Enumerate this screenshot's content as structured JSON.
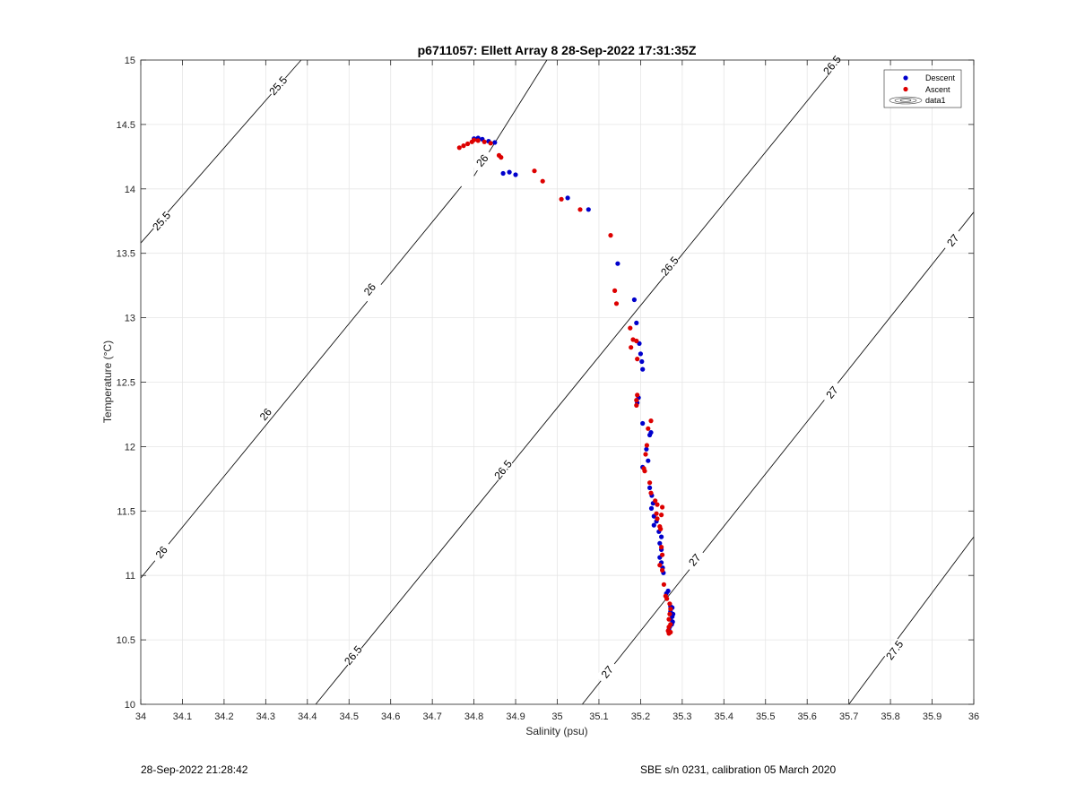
{
  "chart_data": {
    "type": "scatter",
    "title": "p6711057: Ellett Array 8 28-Sep-2022 17:31:35Z",
    "xlabel": "Salinity (psu)",
    "ylabel": "Temperature (°C)",
    "xlim": [
      34,
      36
    ],
    "ylim": [
      10,
      15
    ],
    "xticks": [
      34,
      34.1,
      34.2,
      34.3,
      34.4,
      34.5,
      34.6,
      34.7,
      34.8,
      34.9,
      35,
      35.1,
      35.2,
      35.3,
      35.4,
      35.5,
      35.6,
      35.7,
      35.8,
      35.9,
      36
    ],
    "xtick_labels": [
      "34",
      "34.1",
      "34.2",
      "34.3",
      "34.4",
      "34.5",
      "34.6",
      "34.7",
      "34.8",
      "34.9",
      "35",
      "35.1",
      "35.2",
      "35.3",
      "35.4",
      "35.5",
      "35.6",
      "35.7",
      "35.8",
      "35.9",
      "36"
    ],
    "yticks": [
      10,
      10.5,
      11,
      11.5,
      12,
      12.5,
      13,
      13.5,
      14,
      14.5,
      15
    ],
    "ytick_labels": [
      "10",
      "10.5",
      "11",
      "11.5",
      "12",
      "12.5",
      "13",
      "13.5",
      "14",
      "14.5",
      "15"
    ],
    "grid": true,
    "legend_position": "top-right",
    "legend": [
      "Descent",
      "Ascent",
      "data1"
    ],
    "series": [
      {
        "name": "Descent",
        "color": "#0000cc",
        "points": [
          [
            34.8,
            14.39
          ],
          [
            34.81,
            14.395
          ],
          [
            34.82,
            14.385
          ],
          [
            34.835,
            14.37
          ],
          [
            34.85,
            14.36
          ],
          [
            34.87,
            14.12
          ],
          [
            34.885,
            14.13
          ],
          [
            34.9,
            14.11
          ],
          [
            35.025,
            13.93
          ],
          [
            35.075,
            13.84
          ],
          [
            35.145,
            13.42
          ],
          [
            35.185,
            13.14
          ],
          [
            35.19,
            12.96
          ],
          [
            35.197,
            12.8
          ],
          [
            35.2,
            12.72
          ],
          [
            35.203,
            12.66
          ],
          [
            35.205,
            12.6
          ],
          [
            35.195,
            12.38
          ],
          [
            35.192,
            12.34
          ],
          [
            35.205,
            12.18
          ],
          [
            35.225,
            12.11
          ],
          [
            35.222,
            12.09
          ],
          [
            35.214,
            11.98
          ],
          [
            35.218,
            11.89
          ],
          [
            35.205,
            11.84
          ],
          [
            35.222,
            11.68
          ],
          [
            35.227,
            11.62
          ],
          [
            35.23,
            11.56
          ],
          [
            35.226,
            11.52
          ],
          [
            35.232,
            11.46
          ],
          [
            35.238,
            11.42
          ],
          [
            35.232,
            11.39
          ],
          [
            35.244,
            11.34
          ],
          [
            35.25,
            11.3
          ],
          [
            35.246,
            11.25
          ],
          [
            35.25,
            11.2
          ],
          [
            35.246,
            11.14
          ],
          [
            35.25,
            11.1
          ],
          [
            35.253,
            11.06
          ],
          [
            35.255,
            11.02
          ],
          [
            35.262,
            10.86
          ],
          [
            35.266,
            10.88
          ],
          [
            35.272,
            10.76
          ],
          [
            35.276,
            10.75
          ],
          [
            35.272,
            10.72
          ],
          [
            35.278,
            10.7
          ],
          [
            35.276,
            10.68
          ],
          [
            35.272,
            10.66
          ],
          [
            35.277,
            10.64
          ],
          [
            35.275,
            10.62
          ],
          [
            35.27,
            10.6
          ],
          [
            35.268,
            10.58
          ]
        ]
      },
      {
        "name": "Ascent",
        "color": "#dd0000",
        "points": [
          [
            34.765,
            14.32
          ],
          [
            34.775,
            14.335
          ],
          [
            34.785,
            14.35
          ],
          [
            34.795,
            14.365
          ],
          [
            34.8,
            14.38
          ],
          [
            34.81,
            14.375
          ],
          [
            34.825,
            14.365
          ],
          [
            34.84,
            14.355
          ],
          [
            34.86,
            14.26
          ],
          [
            34.865,
            14.245
          ],
          [
            34.945,
            14.14
          ],
          [
            34.965,
            14.06
          ],
          [
            35.01,
            13.92
          ],
          [
            35.055,
            13.84
          ],
          [
            35.128,
            13.64
          ],
          [
            35.138,
            13.21
          ],
          [
            35.142,
            13.11
          ],
          [
            35.175,
            12.92
          ],
          [
            35.182,
            12.83
          ],
          [
            35.177,
            12.77
          ],
          [
            35.19,
            12.82
          ],
          [
            35.192,
            12.68
          ],
          [
            35.192,
            12.4
          ],
          [
            35.19,
            12.36
          ],
          [
            35.19,
            12.32
          ],
          [
            35.225,
            12.2
          ],
          [
            35.218,
            12.14
          ],
          [
            35.215,
            12.01
          ],
          [
            35.212,
            11.94
          ],
          [
            35.208,
            11.83
          ],
          [
            35.21,
            11.81
          ],
          [
            35.222,
            11.72
          ],
          [
            35.225,
            11.64
          ],
          [
            35.235,
            11.58
          ],
          [
            35.24,
            11.55
          ],
          [
            35.238,
            11.48
          ],
          [
            35.24,
            11.44
          ],
          [
            35.25,
            11.47
          ],
          [
            35.252,
            11.53
          ],
          [
            35.246,
            11.38
          ],
          [
            35.248,
            11.36
          ],
          [
            35.25,
            11.22
          ],
          [
            35.252,
            11.16
          ],
          [
            35.246,
            11.08
          ],
          [
            35.252,
            11.04
          ],
          [
            35.256,
            10.93
          ],
          [
            35.26,
            10.84
          ],
          [
            35.263,
            10.82
          ],
          [
            35.27,
            10.78
          ],
          [
            35.272,
            10.74
          ],
          [
            35.27,
            10.7
          ],
          [
            35.268,
            10.66
          ],
          [
            35.272,
            10.62
          ],
          [
            35.268,
            10.6
          ],
          [
            35.266,
            10.57
          ],
          [
            35.268,
            10.55
          ],
          [
            35.272,
            10.56
          ]
        ]
      }
    ],
    "isopycnals": [
      {
        "label": "25.5",
        "segments": [
          [
            [
              34.0,
              13.58
            ],
            [
              34.385,
              15.0
            ]
          ]
        ],
        "labels_at": [
          [
            34.05,
            13.75
          ],
          [
            34.33,
            14.8
          ]
        ]
      },
      {
        "label": "26",
        "segments": [
          [
            [
              34.0,
              10.98
            ],
            [
              34.77,
              14.02
            ]
          ],
          [
            [
              34.8,
              14.1
            ],
            [
              34.975,
              15.0
            ]
          ]
        ],
        "labels_at": [
          [
            34.05,
            11.18
          ],
          [
            34.3,
            12.25
          ],
          [
            34.55,
            13.22
          ],
          [
            34.82,
            14.22
          ]
        ]
      },
      {
        "label": "26.5",
        "segments": [
          [
            [
              34.42,
              10.0
            ],
            [
              35.68,
              15.0
            ]
          ]
        ],
        "labels_at": [
          [
            34.51,
            10.38
          ],
          [
            34.87,
            11.82
          ],
          [
            35.27,
            13.4
          ],
          [
            35.66,
            14.96
          ]
        ]
      },
      {
        "label": "27",
        "segments": [
          [
            [
              35.06,
              10.0
            ],
            [
              36.0,
              13.82
            ]
          ]
        ],
        "labels_at": [
          [
            35.12,
            10.25
          ],
          [
            35.33,
            11.12
          ],
          [
            35.66,
            12.42
          ],
          [
            35.95,
            13.6
          ]
        ]
      },
      {
        "label": "27.5",
        "segments": [
          [
            [
              35.7,
              10.0
            ],
            [
              36.0,
              11.3
            ]
          ]
        ],
        "labels_at": [
          [
            35.81,
            10.42
          ]
        ]
      }
    ]
  },
  "footer": {
    "left": "28-Sep-2022 21:28:42",
    "right": "SBE s/n 0231, calibration 05 March 2020"
  }
}
